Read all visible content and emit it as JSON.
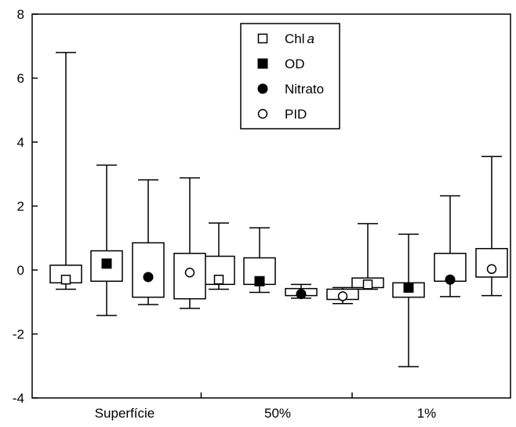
{
  "chart_data": {
    "type": "boxplot",
    "ylim": [
      -4,
      8
    ],
    "yticks": [
      -4,
      -2,
      0,
      2,
      4,
      6,
      8
    ],
    "categories": [
      "Superfície",
      "50%",
      "1%"
    ],
    "legend": {
      "placement": "top-center",
      "entries": [
        {
          "label": "Chl",
          "label_italic": "a",
          "marker": "open-square"
        },
        {
          "label": "OD",
          "marker": "filled-square"
        },
        {
          "label": "Nitrato",
          "marker": "filled-circle"
        },
        {
          "label": "PID",
          "marker": "open-circle"
        }
      ]
    },
    "series": [
      {
        "name": "Chl a",
        "marker": "open-square",
        "groups": [
          {
            "median": -0.3,
            "q1": -0.4,
            "q3": 0.15,
            "whisker_low": -0.6,
            "whisker_high": 6.8
          },
          {
            "median": -0.3,
            "q1": -0.45,
            "q3": 0.43,
            "whisker_low": -0.6,
            "whisker_high": 1.47
          },
          {
            "median": -0.45,
            "q1": -0.55,
            "q3": -0.25,
            "whisker_low": -0.6,
            "whisker_high": 1.45
          }
        ]
      },
      {
        "name": "OD",
        "marker": "filled-square",
        "groups": [
          {
            "median": 0.2,
            "q1": -0.35,
            "q3": 0.6,
            "whisker_low": -1.42,
            "whisker_high": 3.28
          },
          {
            "median": -0.35,
            "q1": -0.45,
            "q3": 0.38,
            "whisker_low": -0.7,
            "whisker_high": 1.32
          },
          {
            "median": -0.55,
            "q1": -0.85,
            "q3": -0.4,
            "whisker_low": -3.02,
            "whisker_high": 1.12
          }
        ]
      },
      {
        "name": "Nitrato",
        "marker": "filled-circle",
        "groups": [
          {
            "median": -0.22,
            "q1": -0.85,
            "q3": 0.85,
            "whisker_low": -1.08,
            "whisker_high": 2.82
          },
          {
            "median": -0.75,
            "q1": -0.8,
            "q3": -0.58,
            "whisker_low": -0.88,
            "whisker_high": -0.45
          },
          {
            "median": -0.3,
            "q1": -0.35,
            "q3": 0.52,
            "whisker_low": -0.83,
            "whisker_high": 2.32
          }
        ]
      },
      {
        "name": "PID",
        "marker": "open-circle",
        "groups": [
          {
            "median": -0.08,
            "q1": -0.9,
            "q3": 0.52,
            "whisker_low": -1.2,
            "whisker_high": 2.88
          },
          {
            "median": -0.82,
            "q1": -0.92,
            "q3": -0.6,
            "whisker_low": -1.05,
            "whisker_high": -0.55
          },
          {
            "median": 0.03,
            "q1": -0.22,
            "q3": 0.67,
            "whisker_low": -0.8,
            "whisker_high": 3.55
          }
        ]
      }
    ],
    "grid": false
  }
}
